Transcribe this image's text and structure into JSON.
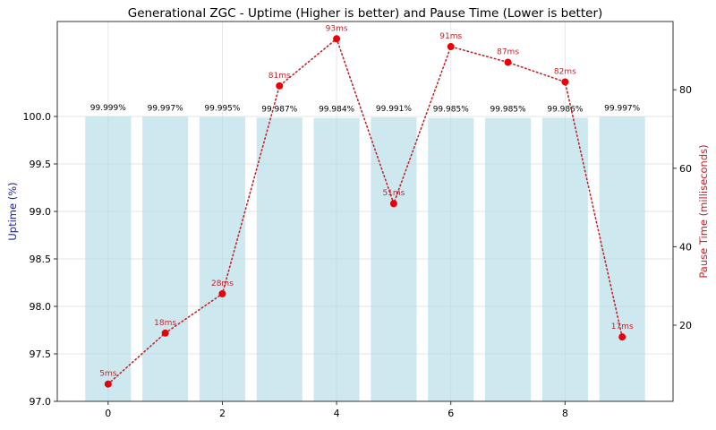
{
  "chart_data": {
    "type": "bar+line",
    "title": "Generational ZGC - Uptime (Higher is better) and Pause Time (Lower is better)",
    "xlabel": "",
    "x": [
      0,
      1,
      2,
      3,
      4,
      5,
      6,
      7,
      8,
      9
    ],
    "xticks": [
      0,
      2,
      4,
      6,
      8
    ],
    "xlim": [
      -0.89,
      9.89
    ],
    "grid": true,
    "left_axis": {
      "label": "Uptime (%)",
      "label_color": "#1a1aa6",
      "ylim": [
        97.0,
        101.0
      ],
      "ticks": [
        "97.0",
        "97.5",
        "98.0",
        "98.5",
        "99.0",
        "99.5",
        "100.0"
      ]
    },
    "right_axis": {
      "label": "Pause Time (milliseconds)",
      "label_color": "#c0262d",
      "ylim": [
        0.6,
        97.4
      ],
      "ticks": [
        "20",
        "40",
        "60",
        "80"
      ]
    },
    "series": [
      {
        "type": "bar",
        "axis": "left",
        "color": "#add8e6",
        "values": [
          99.999,
          99.997,
          99.995,
          99.987,
          99.984,
          99.991,
          99.985,
          99.985,
          99.986,
          99.997
        ],
        "labels": [
          "99.999%",
          "99.997%",
          "99.995%",
          "99.987%",
          "99.984%",
          "99.991%",
          "99.985%",
          "99.985%",
          "99.986%",
          "99.997%"
        ]
      },
      {
        "type": "line",
        "axis": "right",
        "color": "#e8000b",
        "line_style": "dotted",
        "values": [
          5,
          18,
          28,
          81,
          93,
          51,
          91,
          87,
          82,
          17
        ],
        "labels": [
          "5ms",
          "18ms",
          "28ms",
          "81ms",
          "93ms",
          "51ms",
          "91ms",
          "87ms",
          "82ms",
          "17ms"
        ]
      }
    ]
  }
}
